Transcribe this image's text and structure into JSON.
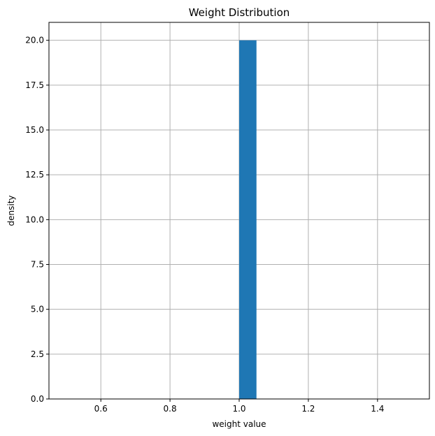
{
  "chart_data": {
    "type": "bar",
    "title": "Weight Distribution",
    "xlabel": "weight value",
    "ylabel": "density",
    "xlim": [
      0.45,
      1.55
    ],
    "ylim": [
      0,
      21
    ],
    "xticks": [
      0.6,
      0.8,
      1.0,
      1.2,
      1.4
    ],
    "xtick_labels": [
      "0.6",
      "0.8",
      "1.0",
      "1.2",
      "1.4"
    ],
    "yticks": [
      0,
      2.5,
      5,
      7.5,
      10,
      12.5,
      15,
      17.5,
      20
    ],
    "ytick_labels": [
      "0.0",
      "2.5",
      "5.0",
      "7.5",
      "10.0",
      "12.5",
      "15.0",
      "17.5",
      "20.0"
    ],
    "bins": [
      {
        "x0": 1.0,
        "x1": 1.05,
        "value": 20.0
      }
    ],
    "grid": true,
    "bar_color": "#1f77b4"
  }
}
